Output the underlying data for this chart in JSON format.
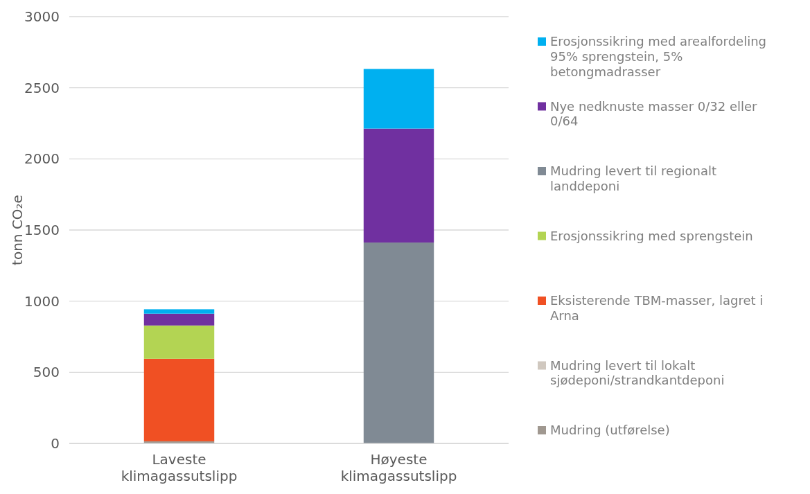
{
  "chart_data": {
    "type": "bar",
    "stacked": true,
    "ylabel": "tonn CO₂e",
    "categories": [
      "Laveste klimagassutslipp",
      "Høyeste klimagassutslipp"
    ],
    "series": [
      {
        "name": "Mudring (utførelse)",
        "color": "#a09890",
        "values": [
          15,
          null
        ]
      },
      {
        "name": "Mudring levert til lokalt sjødeponi/strandkantdeponi",
        "color": "#d0c8bf",
        "values": [
          null,
          0
        ]
      },
      {
        "name": "Eksisterende TBM-masser, lagret i Arna",
        "color": "#f05023",
        "values": [
          580,
          0
        ]
      },
      {
        "name": "Erosjonssikring med sprengstein",
        "color": "#b3d453",
        "values": [
          234,
          0
        ]
      },
      {
        "name": "Mudring levert til regionalt landdeponi",
        "color": "#808a94",
        "values": [
          0,
          1412
        ]
      },
      {
        "name": "Nye nedknuste masser 0/32 eller 0/64",
        "color": "#7030a0",
        "values": [
          83,
          801
        ]
      },
      {
        "name": "Erosjonssikring med arealfordeling 95% sprengstein, 5% betongmadrasser",
        "color": "#00b0f0",
        "values": [
          31,
          419
        ]
      }
    ],
    "ylim": [
      0,
      3000
    ],
    "yticks": [
      0,
      500,
      1000,
      1500,
      2000,
      2500,
      3000
    ],
    "grid": "y",
    "legend": "right"
  }
}
